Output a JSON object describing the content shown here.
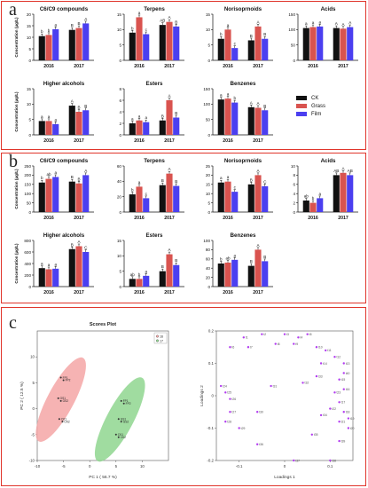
{
  "panels": {
    "a": {
      "letter": "a"
    },
    "b": {
      "letter": "b"
    },
    "c": {
      "letter": "c"
    }
  },
  "legend": {
    "items": [
      {
        "label": "CK",
        "color": "#111111"
      },
      {
        "label": "Grass",
        "color": "#d9534f"
      },
      {
        "label": "Film",
        "color": "#4b3ff0"
      }
    ]
  },
  "chart_data": [
    {
      "panel": "a",
      "type": "bar",
      "title": "C6/C9 compounds",
      "ylabel": "Concentration (μg/L)",
      "ylim": [
        0,
        20
      ],
      "yticks": [
        0,
        5,
        10,
        15,
        20
      ],
      "categories": [
        "2016",
        "2017"
      ],
      "series": [
        {
          "name": "CK",
          "values": [
            10.5,
            13.2
          ]
        },
        {
          "name": "Grass",
          "values": [
            11.0,
            14.0
          ]
        },
        {
          "name": "Film",
          "values": [
            13.5,
            16.0
          ]
        }
      ],
      "letters": [
        [
          "b",
          "b",
          "a"
        ],
        [
          "B",
          "B",
          "A"
        ]
      ]
    },
    {
      "panel": "a",
      "type": "bar",
      "title": "Terpens",
      "ylabel": "",
      "ylim": [
        0,
        15
      ],
      "yticks": [
        0,
        5,
        10,
        15
      ],
      "categories": [
        "2016",
        "2017"
      ],
      "series": [
        {
          "name": "CK",
          "values": [
            9.0,
            11.5
          ]
        },
        {
          "name": "Grass",
          "values": [
            14.0,
            12.5
          ]
        },
        {
          "name": "Film",
          "values": [
            8.5,
            11.0
          ]
        }
      ],
      "letters": [
        [
          "b",
          "a",
          "c"
        ],
        [
          "AB",
          "A",
          "B"
        ]
      ]
    },
    {
      "panel": "a",
      "type": "bar",
      "title": "Norisoprnoids",
      "ylabel": "",
      "ylim": [
        0,
        15
      ],
      "yticks": [
        0,
        5,
        10,
        15
      ],
      "categories": [
        "2016",
        "2017"
      ],
      "series": [
        {
          "name": "CK",
          "values": [
            7.0,
            6.5
          ]
        },
        {
          "name": "Grass",
          "values": [
            10.0,
            11.0
          ]
        },
        {
          "name": "Film",
          "values": [
            4.0,
            7.0
          ]
        }
      ],
      "letters": [
        [
          "b",
          "a",
          "c"
        ],
        [
          "B",
          "A",
          "B"
        ]
      ]
    },
    {
      "panel": "a",
      "type": "bar",
      "title": "Acids",
      "ylabel": "",
      "ylim": [
        0,
        150
      ],
      "yticks": [
        0,
        50,
        100,
        150
      ],
      "categories": [
        "2016",
        "2017"
      ],
      "series": [
        {
          "name": "CK",
          "values": [
            105,
            105
          ]
        },
        {
          "name": "Grass",
          "values": [
            108,
            103
          ]
        },
        {
          "name": "Film",
          "values": [
            110,
            108
          ]
        }
      ],
      "letters": [
        [
          "a",
          "a",
          "a"
        ],
        [
          "A",
          "A",
          "A"
        ]
      ]
    },
    {
      "panel": "a",
      "type": "bar",
      "title": "Higher alcohols",
      "ylabel": "Concentration (μg/L)",
      "ylim": [
        0,
        15
      ],
      "yticks": [
        0,
        5,
        10,
        15
      ],
      "categories": [
        "2016",
        "2017"
      ],
      "series": [
        {
          "name": "CK",
          "values": [
            4.5,
            9.5
          ]
        },
        {
          "name": "Grass",
          "values": [
            4.5,
            7.5
          ]
        },
        {
          "name": "Film",
          "values": [
            3.5,
            8.0
          ]
        }
      ],
      "letters": [
        [
          "a",
          "a",
          "a"
        ],
        [
          "A",
          "B",
          "B"
        ]
      ]
    },
    {
      "panel": "a",
      "type": "bar",
      "title": "Esters",
      "ylabel": "",
      "ylim": [
        0,
        8
      ],
      "yticks": [
        0,
        2,
        4,
        6,
        8
      ],
      "categories": [
        "2016",
        "2017"
      ],
      "series": [
        {
          "name": "CK",
          "values": [
            2.0,
            2.5
          ]
        },
        {
          "name": "Grass",
          "values": [
            2.5,
            6.0
          ]
        },
        {
          "name": "Film",
          "values": [
            2.2,
            3.0
          ]
        }
      ],
      "letters": [
        [
          "a",
          "a",
          "a"
        ],
        [
          "B",
          "A",
          "B"
        ]
      ]
    },
    {
      "panel": "a",
      "type": "bar",
      "title": "Benzenes",
      "ylabel": "",
      "ylim": [
        0,
        150
      ],
      "yticks": [
        0,
        50,
        100,
        150
      ],
      "categories": [
        "2016",
        "2017"
      ],
      "series": [
        {
          "name": "CK",
          "values": [
            115,
            90
          ]
        },
        {
          "name": "Grass",
          "values": [
            118,
            88
          ]
        },
        {
          "name": "Film",
          "values": [
            105,
            80
          ]
        }
      ],
      "letters": [
        [
          "a",
          "a",
          "b"
        ],
        [
          "A",
          "A",
          "B"
        ]
      ]
    },
    {
      "panel": "b",
      "type": "bar",
      "title": "C6/C9 compounds",
      "ylabel": "Concentration (μg/L)",
      "ylim": [
        0,
        250
      ],
      "yticks": [
        0,
        50,
        100,
        150,
        200,
        250
      ],
      "categories": [
        "2016",
        "2017"
      ],
      "series": [
        {
          "name": "CK",
          "values": [
            160,
            165
          ]
        },
        {
          "name": "Grass",
          "values": [
            180,
            155
          ]
        },
        {
          "name": "Film",
          "values": [
            190,
            200
          ]
        }
      ],
      "letters": [
        [
          "b",
          "ab",
          "a"
        ],
        [
          "B",
          "B",
          "A"
        ]
      ]
    },
    {
      "panel": "b",
      "type": "bar",
      "title": "Terpens",
      "ylabel": "",
      "ylim": [
        0,
        60
      ],
      "yticks": [
        0,
        20,
        40,
        60
      ],
      "categories": [
        "2016",
        "2017"
      ],
      "series": [
        {
          "name": "CK",
          "values": [
            23,
            35
          ]
        },
        {
          "name": "Grass",
          "values": [
            33,
            50
          ]
        },
        {
          "name": "Film",
          "values": [
            18,
            34
          ]
        }
      ],
      "letters": [
        [
          "b",
          "a",
          "c"
        ],
        [
          "B",
          "A",
          "B"
        ]
      ]
    },
    {
      "panel": "b",
      "type": "bar",
      "title": "Norisoprnoids",
      "ylabel": "",
      "ylim": [
        0,
        25
      ],
      "yticks": [
        0,
        5,
        10,
        15,
        20,
        25
      ],
      "categories": [
        "2016",
        "2017"
      ],
      "series": [
        {
          "name": "CK",
          "values": [
            16,
            15
          ]
        },
        {
          "name": "Grass",
          "values": [
            16.5,
            20
          ]
        },
        {
          "name": "Film",
          "values": [
            11,
            14
          ]
        }
      ],
      "letters": [
        [
          "a",
          "a",
          "c"
        ],
        [
          "B",
          "A",
          "C"
        ]
      ]
    },
    {
      "panel": "b",
      "type": "bar",
      "title": "Acids",
      "ylabel": "",
      "ylim": [
        0,
        10
      ],
      "yticks": [
        0,
        2,
        4,
        6,
        8,
        10
      ],
      "categories": [
        "2016",
        "2017"
      ],
      "series": [
        {
          "name": "CK",
          "values": [
            2.5,
            8.0
          ]
        },
        {
          "name": "Grass",
          "values": [
            2.0,
            8.5
          ]
        },
        {
          "name": "Film",
          "values": [
            3.0,
            8.0
          ]
        }
      ],
      "letters": [
        [
          "ab",
          "b",
          "a"
        ],
        [
          "AB",
          "A",
          "AB"
        ]
      ]
    },
    {
      "panel": "b",
      "type": "bar",
      "title": "Higher alcohols",
      "ylabel": "Concentration (μg/L)",
      "ylim": [
        0,
        800
      ],
      "yticks": [
        0,
        200,
        400,
        600,
        800
      ],
      "categories": [
        "2016",
        "2017"
      ],
      "series": [
        {
          "name": "CK",
          "values": [
            320,
            650
          ]
        },
        {
          "name": "Grass",
          "values": [
            300,
            700
          ]
        },
        {
          "name": "Film",
          "values": [
            310,
            600
          ]
        }
      ],
      "letters": [
        [
          "a",
          "a",
          "a"
        ],
        [
          "B",
          "A",
          "C"
        ]
      ]
    },
    {
      "panel": "b",
      "type": "bar",
      "title": "Esters",
      "ylabel": "",
      "ylim": [
        0,
        15
      ],
      "yticks": [
        0,
        5,
        10,
        15
      ],
      "categories": [
        "2016",
        "2017"
      ],
      "series": [
        {
          "name": "CK",
          "values": [
            2.5,
            5.0
          ]
        },
        {
          "name": "Grass",
          "values": [
            2.5,
            10.5
          ]
        },
        {
          "name": "Film",
          "values": [
            3.5,
            7.0
          ]
        }
      ],
      "letters": [
        [
          "ab",
          "b",
          "a"
        ],
        [
          "B",
          "A",
          "B"
        ]
      ]
    },
    {
      "panel": "b",
      "type": "bar",
      "title": "Benzenes",
      "ylabel": "",
      "ylim": [
        0,
        100
      ],
      "yticks": [
        0,
        20,
        40,
        60,
        80,
        100
      ],
      "categories": [
        "2016",
        "2017"
      ],
      "series": [
        {
          "name": "CK",
          "values": [
            50,
            45
          ]
        },
        {
          "name": "Grass",
          "values": [
            52,
            80
          ]
        },
        {
          "name": "Film",
          "values": [
            58,
            55
          ]
        }
      ],
      "letters": [
        [
          "b",
          "ab",
          "a"
        ],
        [
          "B",
          "A",
          "B"
        ]
      ]
    },
    {
      "panel": "c",
      "type": "scatter",
      "title": "Scores Plot",
      "xlabel": "PC 1 ( 56.7 %)",
      "ylabel": "PC 2 ( 12.5 %)",
      "xlim": [
        -10,
        15
      ],
      "ylim": [
        -10,
        15
      ],
      "xticks": [
        -10,
        -5,
        0,
        5,
        10
      ],
      "yticks": [
        -10,
        -5,
        0,
        5,
        10
      ],
      "legend": [
        "16",
        "17"
      ],
      "groups": [
        {
          "name": "16",
          "color": "#f4a6a6",
          "points": [
            [
              -5.5,
              6
            ],
            [
              -5.0,
              5.5
            ],
            [
              -6.0,
              2
            ],
            [
              -5.5,
              1.5
            ],
            [
              -5.8,
              -2
            ],
            [
              -5.2,
              -2.5
            ]
          ],
          "labels": [
            "FP1",
            "FP2",
            "GS1",
            "GS2",
            "CK1",
            "CK2"
          ]
        },
        {
          "name": "17",
          "color": "#8fd68f",
          "points": [
            [
              6,
              1.5
            ],
            [
              6.5,
              1.0
            ],
            [
              5.5,
              -2
            ],
            [
              6,
              -2.5
            ],
            [
              5,
              -5
            ],
            [
              5.5,
              -5.5
            ]
          ],
          "labels": [
            "FP1",
            "FP2",
            "GS1",
            "GS2",
            "CK1",
            "CK2"
          ]
        }
      ]
    },
    {
      "panel": "c",
      "type": "scatter",
      "title": "",
      "xlabel": "Loadings 1",
      "ylabel": "Loadings 2",
      "xlim": [
        -0.15,
        0.15
      ],
      "ylim": [
        -0.2,
        0.2
      ],
      "xticks": [
        -0.1,
        0,
        0.1
      ],
      "yticks": [
        -0.2,
        -0.1,
        0,
        0.1,
        0.2
      ],
      "labels": [
        "t1",
        "t2",
        "t3",
        "t4",
        "t5",
        "t6",
        "t7",
        "t8",
        "t9",
        "t10",
        "t11",
        "t12",
        "t13",
        "t14",
        "t15",
        "t16",
        "t17",
        "t18",
        "t19",
        "t20",
        "t21",
        "t22",
        "t23",
        "t24",
        "t25",
        "t26",
        "t27",
        "t28",
        "t29",
        "t30",
        "t31",
        "t32",
        "t33",
        "t34",
        "t35",
        "t36",
        "t37",
        "t38",
        "t39",
        "t40"
      ],
      "points": [
        [
          -0.09,
          0.18
        ],
        [
          -0.05,
          0.19
        ],
        [
          0.0,
          0.19
        ],
        [
          0.03,
          0.18
        ],
        [
          0.05,
          0.19
        ],
        [
          -0.12,
          0.15
        ],
        [
          -0.08,
          0.15
        ],
        [
          -0.02,
          0.16
        ],
        [
          0.02,
          0.16
        ],
        [
          0.07,
          0.15
        ],
        [
          0.09,
          0.14
        ],
        [
          0.11,
          0.12
        ],
        [
          0.13,
          0.1
        ],
        [
          0.08,
          0.1
        ],
        [
          0.12,
          0.05
        ],
        [
          0.13,
          0.02
        ],
        [
          0.12,
          -0.02
        ],
        [
          0.13,
          -0.05
        ],
        [
          0.14,
          -0.07
        ],
        [
          0.14,
          -0.1
        ],
        [
          0.12,
          -0.08
        ],
        [
          0.1,
          -0.04
        ],
        [
          0.11,
          0.01
        ],
        [
          -0.14,
          0.03
        ],
        [
          -0.13,
          0.01
        ],
        [
          -0.12,
          -0.01
        ],
        [
          -0.12,
          -0.05
        ],
        [
          -0.13,
          -0.08
        ],
        [
          -0.1,
          -0.1
        ],
        [
          -0.06,
          -0.05
        ],
        [
          -0.03,
          0.03
        ],
        [
          0.04,
          0.04
        ],
        [
          0.07,
          0.06
        ],
        [
          0.08,
          -0.06
        ],
        [
          0.06,
          -0.12
        ],
        [
          -0.06,
          -0.15
        ],
        [
          0.02,
          -0.2
        ],
        [
          0.1,
          -0.2
        ],
        [
          0.12,
          -0.14
        ],
        [
          0.13,
          0.07
        ]
      ]
    }
  ]
}
